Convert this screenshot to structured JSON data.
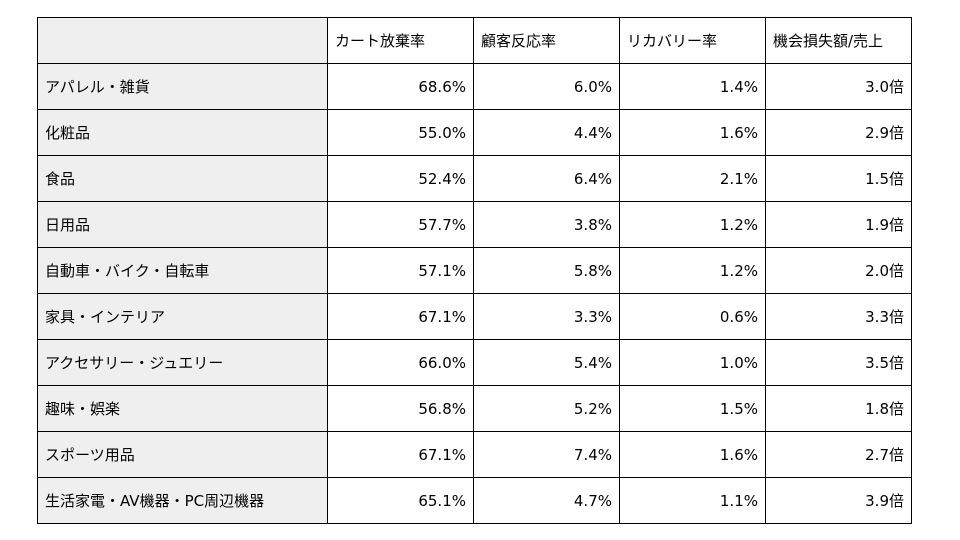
{
  "table": {
    "headers": [
      "",
      "カート放棄率",
      "顧客反応率",
      "リカバリー率",
      "機会損失額/売上"
    ],
    "rows": [
      {
        "category": "アパレル・雑貨",
        "values": [
          "68.6%",
          "6.0%",
          "1.4%",
          "3.0倍"
        ]
      },
      {
        "category": "化粧品",
        "values": [
          "55.0%",
          "4.4%",
          "1.6%",
          "2.9倍"
        ]
      },
      {
        "category": "食品",
        "values": [
          "52.4%",
          "6.4%",
          "2.1%",
          "1.5倍"
        ]
      },
      {
        "category": "日用品",
        "values": [
          "57.7%",
          "3.8%",
          "1.2%",
          "1.9倍"
        ]
      },
      {
        "category": "自動車・バイク・自転車",
        "values": [
          "57.1%",
          "5.8%",
          "1.2%",
          "2.0倍"
        ]
      },
      {
        "category": "家具・インテリア",
        "values": [
          "67.1%",
          "3.3%",
          "0.6%",
          "3.3倍"
        ]
      },
      {
        "category": "アクセサリー・ジュエリー",
        "values": [
          "66.0%",
          "5.4%",
          "1.0%",
          "3.5倍"
        ]
      },
      {
        "category": "趣味・娯楽",
        "values": [
          "56.8%",
          "5.2%",
          "1.5%",
          "1.8倍"
        ]
      },
      {
        "category": "スポーツ用品",
        "values": [
          "67.1%",
          "7.4%",
          "1.6%",
          "2.7倍"
        ]
      },
      {
        "category": "生活家電・AV機器・PC周辺機器",
        "values": [
          "65.1%",
          "4.7%",
          "1.1%",
          "3.9倍"
        ]
      }
    ]
  },
  "colors": {
    "label_background": "#efefef",
    "border": "#000000"
  }
}
